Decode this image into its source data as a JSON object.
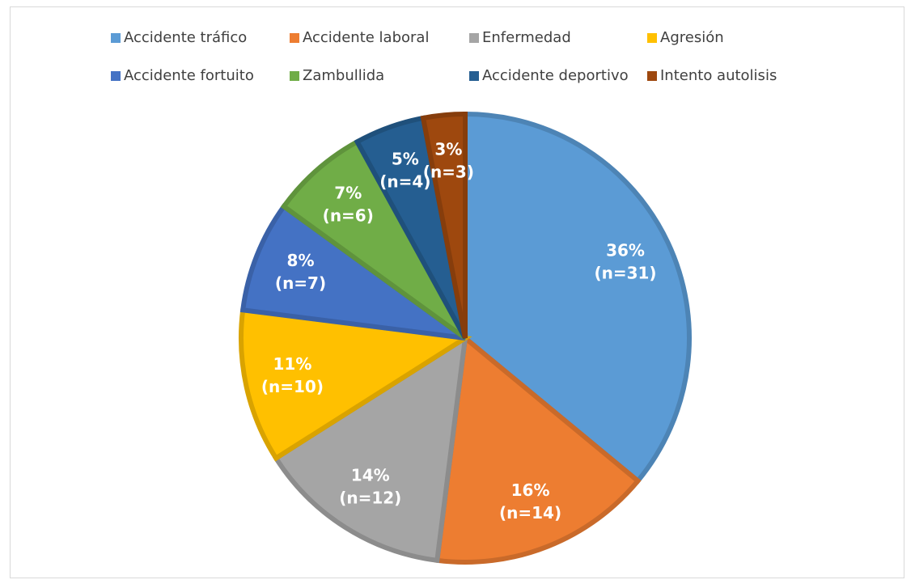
{
  "chart_data": {
    "type": "pie",
    "categories": [
      "Accidente tráfico",
      "Accidente laboral",
      "Enfermedad",
      "Agresión",
      "Accidente fortuito",
      "Zambullida",
      "Accidente deportivo",
      "Intento autolisis"
    ],
    "values": [
      36,
      16,
      14,
      11,
      8,
      7,
      5,
      3
    ],
    "value_labels": [
      "36%",
      "16%",
      "14%",
      "11%",
      "8%",
      "7%",
      "5%",
      "3%"
    ],
    "counts": [
      31,
      14,
      12,
      10,
      7,
      6,
      4,
      3
    ],
    "count_labels": [
      "(n=31)",
      "(n=14)",
      "(n=12)",
      "(n=10)",
      "(n=7)",
      "(n=6)",
      "(n=4)",
      "(n=3)"
    ],
    "colors": [
      "#5b9bd5",
      "#ed7d31",
      "#a5a5a5",
      "#ffc000",
      "#4472c4",
      "#70ad47",
      "#255e91",
      "#9e480e"
    ],
    "legend": "top"
  }
}
